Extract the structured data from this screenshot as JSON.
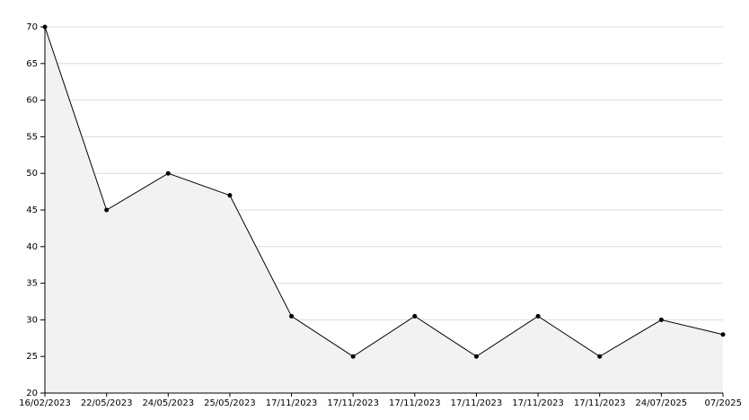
{
  "chart_data": {
    "type": "line",
    "categories": [
      "16/02/2023",
      "22/05/2023",
      "24/05/2023",
      "25/05/2023",
      "17/11/2023",
      "17/11/2023",
      "17/11/2023",
      "17/11/2023",
      "17/11/2023",
      "17/11/2023",
      "24/07/2025",
      "07/2025"
    ],
    "values": [
      70,
      45,
      50,
      47,
      30.5,
      25,
      30.5,
      25,
      30.5,
      25,
      30,
      28
    ],
    "color": "#000000",
    "area": true,
    "fill_color": "#f2f2f2",
    "ylim": [
      20,
      70
    ],
    "yticks": [
      20,
      25,
      30,
      35,
      40,
      45,
      50,
      55,
      60,
      65,
      70
    ],
    "grid": true
  }
}
